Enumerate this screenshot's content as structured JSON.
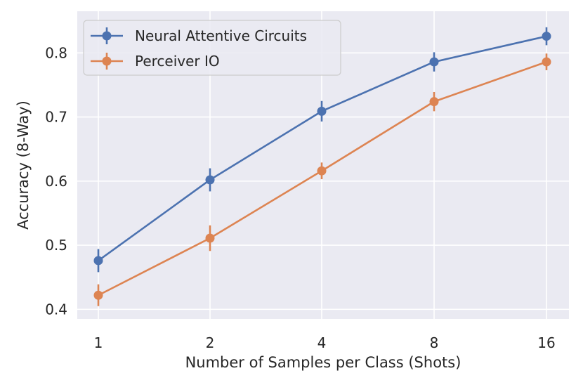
{
  "chart_data": {
    "type": "line",
    "title": "",
    "xlabel": "Number of Samples per Class (Shots)",
    "ylabel": "Accuracy (8-Way)",
    "categories": [
      "1",
      "2",
      "4",
      "8",
      "16"
    ],
    "ylim": [
      0.385,
      0.865
    ],
    "yticks": [
      0.4,
      0.5,
      0.6,
      0.7,
      0.8
    ],
    "ytick_labels": [
      "0.4",
      "0.5",
      "0.6",
      "0.7",
      "0.8"
    ],
    "grid": true,
    "legend_position": "upper-left",
    "series": [
      {
        "name": "Neural Attentive Circuits",
        "color": "#4c72b0",
        "values": [
          0.476,
          0.602,
          0.709,
          0.786,
          0.826
        ],
        "errors": [
          0.018,
          0.018,
          0.016,
          0.015,
          0.014
        ]
      },
      {
        "name": "Perceiver IO",
        "color": "#dd8452",
        "values": [
          0.422,
          0.511,
          0.616,
          0.724,
          0.786
        ],
        "errors": [
          0.017,
          0.02,
          0.013,
          0.015,
          0.013
        ]
      }
    ]
  }
}
